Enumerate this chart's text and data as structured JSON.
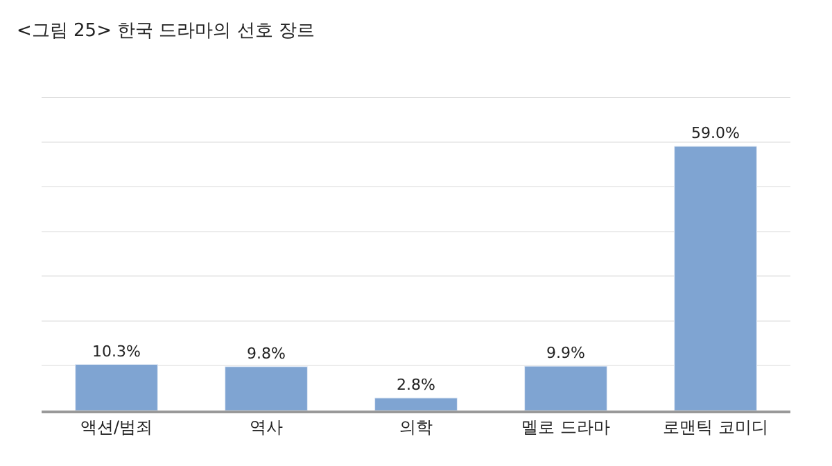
{
  "chart_data": {
    "type": "bar",
    "title": "<그림 25> 한국 드라마의 선호 장르",
    "categories": [
      "액션/범죄",
      "역사",
      "의학",
      "멜로 드라마",
      "로맨틱 코미디"
    ],
    "values": [
      10.3,
      9.8,
      2.8,
      9.9,
      59.0
    ],
    "value_labels": [
      "10.3%",
      "9.8%",
      "2.8%",
      "9.9%",
      "59.0%"
    ],
    "color": "#7fa4d2",
    "ylim": [
      0,
      70
    ],
    "yticks": [
      {
        "value": 0,
        "label": null
      },
      {
        "value": 10,
        "label": null
      },
      {
        "value": 20,
        "label": null
      },
      {
        "value": 30,
        "label": null
      },
      {
        "value": 40,
        "label": null
      },
      {
        "value": 50,
        "label": null
      },
      {
        "value": 60,
        "label": null
      },
      {
        "value": 70,
        "label": null
      }
    ],
    "grid": "y",
    "tick_labels": "x"
  }
}
